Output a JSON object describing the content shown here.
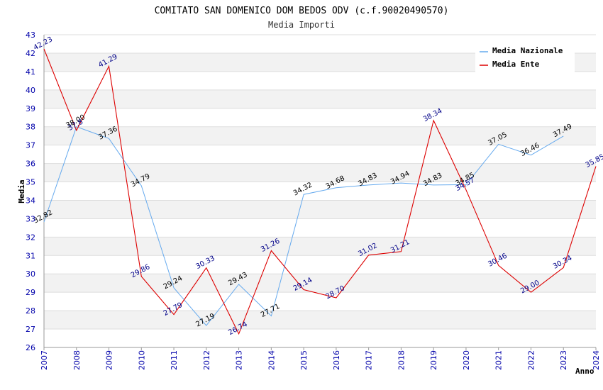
{
  "chart_data": {
    "type": "line",
    "title": "COMITATO SAN DOMENICO DOM BEDOS ODV (c.f.90020490570)",
    "subtitle": "Media Importi",
    "xlabel": "Anno",
    "ylabel": "Media",
    "ylim": [
      26,
      43
    ],
    "categories": [
      "2007",
      "2008",
      "2009",
      "2010",
      "2011",
      "2012",
      "2013",
      "2014",
      "2015",
      "2016",
      "2017",
      "2018",
      "2019",
      "2020",
      "2021",
      "2022",
      "2023",
      "2024"
    ],
    "yticks": [
      "26",
      "27",
      "28",
      "29",
      "30",
      "31",
      "32",
      "33",
      "34",
      "35",
      "36",
      "37",
      "38",
      "39",
      "40",
      "41",
      "42",
      "43"
    ],
    "legend": [
      {
        "name": "Media Nazionale",
        "color": "#66aaee"
      },
      {
        "name": "Media Ente",
        "color": "#dd0000"
      }
    ],
    "series": [
      {
        "name": "Media Nazionale",
        "color": "#66aaee",
        "values": [
          32.82,
          38.0,
          37.36,
          34.79,
          29.24,
          27.19,
          29.43,
          27.71,
          34.32,
          34.68,
          34.83,
          34.94,
          34.83,
          34.85,
          37.05,
          36.46,
          37.49,
          null
        ],
        "labels": [
          "32.82",
          "38.00",
          "37.36",
          "34.79",
          "29.24",
          "27.19",
          "29.43",
          "27.71",
          "34.32",
          "34.68",
          "34.83",
          "34.94",
          "34.83",
          "34.85",
          "37.05",
          "36.46",
          "37.49",
          ""
        ]
      },
      {
        "name": "Media Ente",
        "color": "#dd0000",
        "values": [
          42.23,
          37.8,
          41.29,
          29.86,
          27.79,
          30.33,
          26.74,
          31.26,
          29.14,
          28.7,
          31.02,
          31.21,
          38.34,
          34.57,
          30.46,
          29.0,
          30.34,
          35.85
        ],
        "labels": [
          "42.23",
          "37.8",
          "41.29",
          "29.86",
          "27.79",
          "30.33",
          "26.74",
          "31.26",
          "29.14",
          "28.70",
          "31.02",
          "31.21",
          "38.34",
          "34.57",
          "30.46",
          "29.00",
          "30.34",
          "35.85"
        ]
      }
    ]
  }
}
